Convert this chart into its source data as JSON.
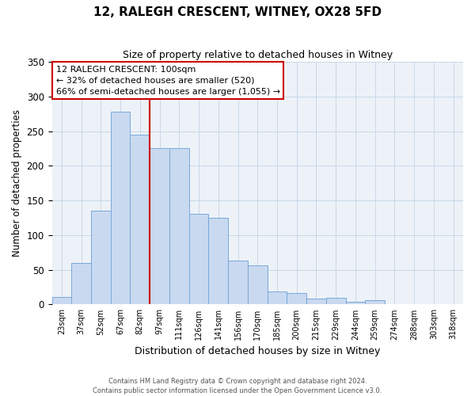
{
  "title": "12, RALEGH CRESCENT, WITNEY, OX28 5FD",
  "subtitle": "Size of property relative to detached houses in Witney",
  "xlabel": "Distribution of detached houses by size in Witney",
  "ylabel": "Number of detached properties",
  "bar_labels": [
    "23sqm",
    "37sqm",
    "52sqm",
    "67sqm",
    "82sqm",
    "97sqm",
    "111sqm",
    "126sqm",
    "141sqm",
    "156sqm",
    "170sqm",
    "185sqm",
    "200sqm",
    "215sqm",
    "229sqm",
    "244sqm",
    "259sqm",
    "274sqm",
    "288sqm",
    "303sqm",
    "318sqm"
  ],
  "bar_values": [
    11,
    60,
    135,
    278,
    245,
    225,
    225,
    131,
    125,
    63,
    57,
    19,
    17,
    9,
    10,
    4,
    6,
    0,
    0,
    0,
    0
  ],
  "bar_color": "#c9d9f0",
  "bar_edge_color": "#7aa8d8",
  "vline_x": 5,
  "vline_color": "#cc0000",
  "annotation_title": "12 RALEGH CRESCENT: 100sqm",
  "annotation_line1": "← 32% of detached houses are smaller (520)",
  "annotation_line2": "66% of semi-detached houses are larger (1,055) →",
  "annotation_box_facecolor": "#ffffff",
  "annotation_box_edgecolor": "#cc0000",
  "footer1": "Contains HM Land Registry data © Crown copyright and database right 2024.",
  "footer2": "Contains public sector information licensed under the Open Government Licence v3.0.",
  "ylim": [
    0,
    350
  ],
  "yticks": [
    0,
    50,
    100,
    150,
    200,
    250,
    300,
    350
  ],
  "grid_color": "#c8d8e8",
  "fig_facecolor": "#ffffff",
  "ax_facecolor": "#edf2f8"
}
